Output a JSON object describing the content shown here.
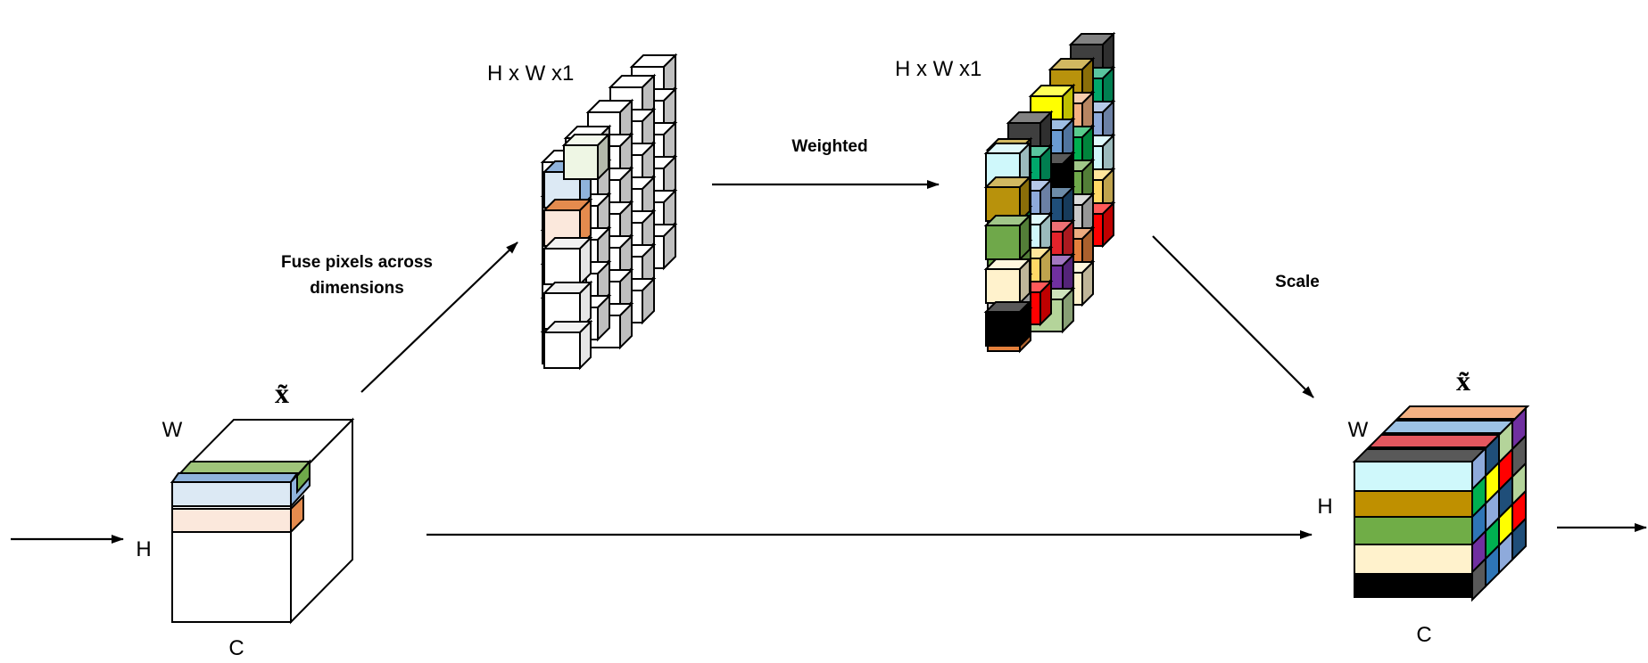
{
  "labels": {
    "input_tensor": "x̃",
    "input_w": "W",
    "input_h": "H",
    "input_c": "C",
    "fuse_line1": "Fuse pixels across",
    "fuse_line2": "dimensions",
    "map1_dims": "H x W x1",
    "weighted": "Weighted",
    "map2_dims": "H x W x1",
    "scale": "Scale",
    "output_tensor": "x̃̃",
    "output_w": "W",
    "output_h": "H",
    "output_c": "C"
  },
  "colors": {
    "stroke": "#000000",
    "input_slice_top": "#9fc47a",
    "input_slice_blue": "#8fb3dc",
    "input_slice_orange": "#e48b4e",
    "input_slice_fill_blue": "#dce9f4",
    "input_slice_fill_orange": "#fbe8dc",
    "map1_cube_green": "#b5d18a",
    "map1_cube_blue": "#8fb3dc",
    "map1_cube_orange": "#e48b4e"
  },
  "map2_palette": [
    "#e4803c",
    "#6a9bd2",
    "#e4232b",
    "#3f3f3f",
    "#cff8fb",
    "#b8920c",
    "#6fa84a",
    "#fff2cc",
    "#000000",
    "#7030a0",
    "#00a86b",
    "#ffd966",
    "#f4b183",
    "#c9c9c9",
    "#ffff00",
    "#1f4e79",
    "#b4d49a",
    "#8eaadb",
    "#ff0000",
    "#00b050"
  ],
  "output_layers": [
    "#f4b183",
    "#9dc3e6",
    "#e4575f",
    "#595959",
    "#cff8fb",
    "#bf9000",
    "#70ad47",
    "#fff2cc",
    "#000000"
  ]
}
